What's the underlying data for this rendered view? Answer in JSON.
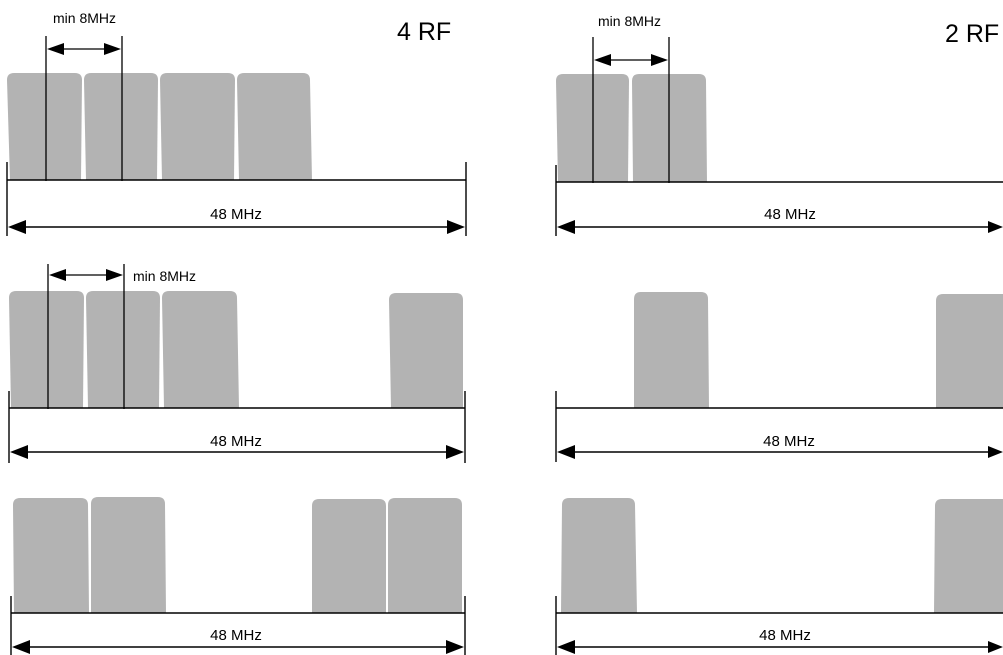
{
  "columns": [
    {
      "title": "4 RF",
      "rows": [
        {
          "span_label": "48 MHz",
          "min_spacing_label": "min 8MHz",
          "carriers": 4
        },
        {
          "span_label": "48 MHz",
          "min_spacing_label": "min 8MHz",
          "carriers": 4
        },
        {
          "span_label": "48 MHz",
          "carriers": 4
        }
      ]
    },
    {
      "title": "2 RF",
      "rows": [
        {
          "span_label": "48 MHz",
          "min_spacing_label": "min 8MHz",
          "carriers": 2
        },
        {
          "span_label": "48 MHz",
          "carriers": 2
        },
        {
          "span_label": "48 MHz",
          "carriers": 2
        }
      ]
    }
  ],
  "colors": {
    "carrier_fill": "#b3b3b3",
    "line": "#000000",
    "background": "#ffffff"
  }
}
